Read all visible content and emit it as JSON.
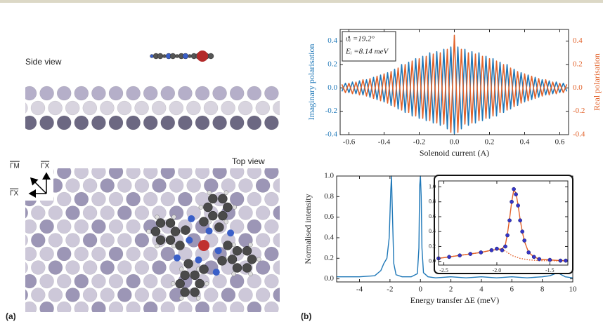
{
  "panel_a": {
    "side_view": "Side view",
    "top_view": "Top view",
    "direction_gm": "ΓM",
    "direction_gx_1": "ΓX",
    "direction_gx_2": "ΓX",
    "label": "(a)"
  },
  "panel_b_label": "(b)",
  "chart_data": [
    {
      "type": "line",
      "xlabel": "Solenoid current (A)",
      "ylabel": "Imaginary polarisation",
      "y2label": "Real polarisation",
      "annotations": [
        "ϑᵢ =19.2°",
        "Eᵢ =8.14 meV"
      ],
      "x": [
        -0.64,
        -0.62,
        -0.6,
        -0.58,
        -0.56,
        -0.54,
        -0.52,
        -0.5,
        -0.48,
        -0.46,
        -0.44,
        -0.42,
        -0.4,
        -0.38,
        -0.36,
        -0.34,
        -0.32,
        -0.3,
        -0.28,
        -0.26,
        -0.24,
        -0.22,
        -0.2,
        -0.18,
        -0.16,
        -0.14,
        -0.12,
        -0.1,
        -0.08,
        -0.06,
        -0.04,
        -0.02,
        0,
        0.02,
        0.04,
        0.06,
        0.08,
        0.1,
        0.12,
        0.14,
        0.16,
        0.18,
        0.2,
        0.22,
        0.24,
        0.26,
        0.28,
        0.3,
        0.32,
        0.34,
        0.36,
        0.38,
        0.4,
        0.42,
        0.44,
        0.46,
        0.48,
        0.5,
        0.52,
        0.54,
        0.56,
        0.58,
        0.6,
        0.62,
        0.64
      ],
      "xlim": [
        -0.65,
        0.65
      ],
      "xticks": [
        -0.6,
        -0.4,
        -0.2,
        {
          "value": 0,
          "label": "0.0"
        },
        0.2,
        0.4,
        0.6
      ],
      "ylim": [
        -0.4,
        0.5
      ],
      "yticks": [
        -0.4,
        -0.2,
        {
          "value": 0,
          "label": "0.0"
        },
        0.2,
        0.4
      ],
      "y2lim": [
        -0.4,
        0.5
      ],
      "y2ticks": [
        -0.4,
        -0.2,
        {
          "value": 0,
          "label": "0.0"
        },
        0.2,
        0.4
      ],
      "series": [
        {
          "color": "#1f78b8",
          "values": [
            -0.03,
            0.04,
            -0.04,
            0.05,
            -0.05,
            0.06,
            -0.06,
            0.07,
            -0.08,
            0.09,
            -0.1,
            0.11,
            -0.12,
            0.13,
            -0.15,
            0.16,
            -0.18,
            0.2,
            -0.21,
            0.22,
            -0.24,
            0.25,
            -0.26,
            0.27,
            -0.28,
            0.3,
            -0.3,
            0.31,
            -0.32,
            0.33,
            -0.35,
            0.35,
            -0.39,
            0.35,
            -0.35,
            0.33,
            -0.32,
            0.31,
            -0.3,
            0.3,
            -0.28,
            0.27,
            -0.26,
            0.25,
            -0.24,
            0.22,
            -0.21,
            0.2,
            -0.18,
            0.16,
            -0.15,
            0.13,
            -0.12,
            0.11,
            -0.1,
            0.09,
            -0.08,
            0.07,
            -0.06,
            0.06,
            -0.05,
            0.05,
            -0.04,
            0.04,
            -0.03
          ]
        },
        {
          "color": "#e2622a",
          "axis": "y2",
          "values": [
            0.03,
            -0.04,
            0.04,
            -0.05,
            0.05,
            -0.06,
            0.07,
            -0.07,
            0.08,
            -0.09,
            0.1,
            -0.11,
            0.12,
            -0.13,
            0.14,
            -0.16,
            0.17,
            -0.19,
            0.2,
            -0.21,
            0.23,
            -0.24,
            0.25,
            -0.26,
            0.27,
            -0.28,
            0.29,
            -0.3,
            0.3,
            -0.31,
            0.33,
            -0.38,
            0.45,
            -0.38,
            0.33,
            -0.31,
            0.3,
            -0.3,
            0.29,
            -0.28,
            0.27,
            -0.26,
            0.25,
            -0.24,
            0.23,
            -0.21,
            0.2,
            -0.19,
            0.17,
            -0.16,
            0.14,
            -0.13,
            0.12,
            -0.11,
            0.1,
            -0.09,
            0.08,
            -0.07,
            0.07,
            -0.06,
            0.05,
            -0.05,
            0.04,
            -0.04,
            0.03
          ]
        }
      ]
    },
    {
      "type": "line",
      "xlabel": "Energy transfer ΔE (meV)",
      "ylabel": "Normalised intensity",
      "x": [
        -5.5,
        -4,
        -3,
        -2.6,
        -2.4,
        -2.2,
        -2.05,
        -1.95,
        -1.9,
        -1.85,
        -1.75,
        -1.6,
        -1.2,
        -0.6,
        -0.2,
        -0.1,
        -0.05,
        0,
        0.05,
        0.1,
        0.2,
        0.5,
        1,
        2,
        3,
        4,
        5,
        6,
        7,
        8,
        8.5,
        9,
        9.5,
        10
      ],
      "xlim": [
        -5.5,
        10
      ],
      "xticks": [
        -4,
        -2,
        0,
        2,
        4,
        6,
        8,
        10
      ],
      "ylim": [
        -0.03,
        1
      ],
      "yticks": [
        {
          "value": 0,
          "label": "0.0"
        },
        0.2,
        0.4,
        0.6,
        0.8,
        {
          "value": 1,
          "label": "1.0"
        }
      ],
      "series": [
        {
          "color": "#1f78b8",
          "values": [
            0.02,
            0.02,
            0.03,
            0.08,
            0.15,
            0.2,
            0.4,
            0.85,
            1.0,
            0.7,
            0.15,
            0.04,
            0.02,
            0.02,
            0.05,
            0.3,
            0.9,
            1.0,
            0.8,
            0.3,
            0.06,
            0.02,
            0.01,
            0.02,
            0.01,
            0.02,
            0.01,
            0.02,
            0.01,
            0.02,
            0.03,
            0.06,
            0.02,
            0.01
          ]
        }
      ]
    },
    {
      "type": "line",
      "x": [
        -2.55,
        -2.45,
        -2.35,
        -2.25,
        -2.15,
        -2.05,
        -2.0,
        -1.95,
        -1.92,
        -1.9,
        -1.88,
        -1.86,
        -1.84,
        -1.82,
        -1.8,
        -1.78,
        -1.76,
        -1.74,
        -1.7,
        -1.65,
        -1.6,
        -1.5,
        -1.4,
        -1.35
      ],
      "xlim": [
        -2.55,
        -1.33
      ],
      "xticks": [
        -2.5,
        {
          "value": -2,
          "label": "-2.0"
        },
        -1.5
      ],
      "ylim": [
        -0.05,
        1.08
      ],
      "yticks": [
        {
          "value": 0,
          "label": "0.0"
        },
        0.2,
        0.4,
        0.6,
        0.8,
        {
          "value": 1,
          "label": "1.0"
        }
      ],
      "series": [
        {
          "color": "#e2622a",
          "style": "dotted",
          "values": [
            0.04,
            0.06,
            0.08,
            0.1,
            0.12,
            0.15,
            0.16,
            0.15,
            0.14,
            0.12,
            0.1,
            0.08,
            0.07,
            0.06,
            0.05,
            0.04,
            0.035,
            0.03,
            0.02,
            0.015,
            0.01,
            0.01,
            0.005,
            0.005
          ]
        },
        {
          "color": "#e2622a",
          "values": [
            0.04,
            0.06,
            0.08,
            0.1,
            0.12,
            0.15,
            0.16,
            0.17,
            0.22,
            0.37,
            0.57,
            0.8,
            0.96,
            0.92,
            0.76,
            0.56,
            0.4,
            0.27,
            0.12,
            0.06,
            0.03,
            0.02,
            0.01,
            0.01
          ]
        },
        {
          "color": "#3535c8",
          "style": "markers",
          "values": [
            0.04,
            0.06,
            0.08,
            0.1,
            0.12,
            0.15,
            0.17,
            0.15,
            0.2,
            0.35,
            0.55,
            0.8,
            0.97,
            0.9,
            0.75,
            0.55,
            0.4,
            0.28,
            0.12,
            0.06,
            0.03,
            0.02,
            0.01,
            0.01
          ]
        }
      ]
    }
  ]
}
